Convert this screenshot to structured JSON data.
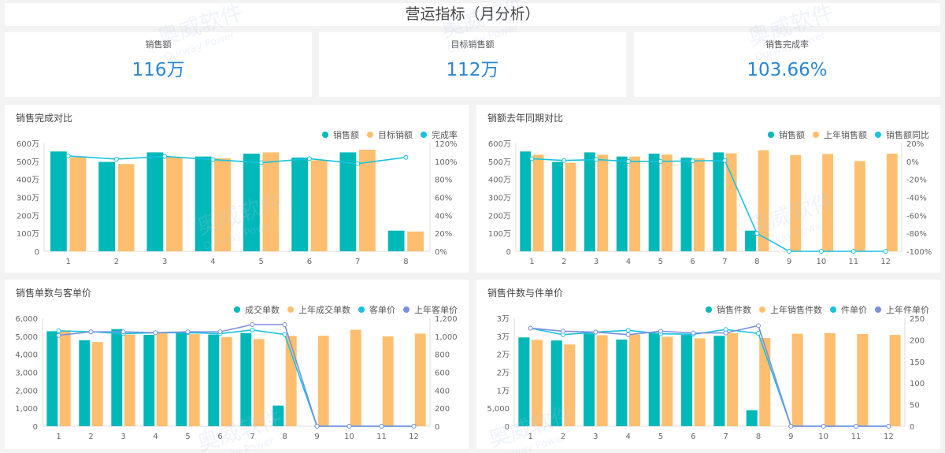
{
  "header": {
    "title": "营运指标（月分析）"
  },
  "kpis": [
    {
      "label": "销售额",
      "value": "116万"
    },
    {
      "label": "目标销售额",
      "value": "112万"
    },
    {
      "label": "销售完成率",
      "value": "103.66%"
    }
  ],
  "watermark": {
    "cn": "奥威软件",
    "en": "Ourway Power"
  },
  "colors": {
    "teal": "#00b8b8",
    "orange": "#fdbf6f",
    "cyan": "#17c2e0",
    "purple": "#7b8fdc",
    "kpi_blue": "#2a86d4"
  },
  "chart_data": [
    {
      "type": "bar+line",
      "title": "销售完成对比",
      "categories": [
        "1",
        "2",
        "3",
        "4",
        "5",
        "6",
        "7",
        "8"
      ],
      "left_axis": {
        "ticks": [
          "0",
          "100万",
          "200万",
          "300万",
          "400万",
          "500万",
          "600万"
        ],
        "min": 0,
        "max": 600,
        "unit": "万"
      },
      "right_axis": {
        "ticks": [
          "0%",
          "20%",
          "40%",
          "60%",
          "80%",
          "100%",
          "120%"
        ],
        "min": 0,
        "max": 120
      },
      "series": [
        {
          "name": "销售额",
          "kind": "bar",
          "axis": "left",
          "color": "#00b8b8",
          "values": [
            555,
            497,
            550,
            527,
            543,
            521,
            550,
            115
          ]
        },
        {
          "name": "目标销额",
          "kind": "bar",
          "axis": "left",
          "color": "#fdbf6f",
          "values": [
            523,
            485,
            523,
            517,
            550,
            506,
            565,
            110
          ]
        },
        {
          "name": "完成率",
          "kind": "line",
          "axis": "right",
          "color": "#17c2e0",
          "values": [
            106,
            102.5,
            105.5,
            102,
            98.5,
            103,
            97.5,
            104.5
          ]
        }
      ],
      "legend": [
        "销售额",
        "目标销额",
        "完成率"
      ]
    },
    {
      "type": "bar+line",
      "title": "销额去年同期对比",
      "categories": [
        "1",
        "2",
        "3",
        "4",
        "5",
        "6",
        "7",
        "8",
        "9",
        "10",
        "11",
        "12"
      ],
      "left_axis": {
        "ticks": [
          "0",
          "100万",
          "200万",
          "300万",
          "400万",
          "500万",
          "600万"
        ],
        "min": 0,
        "max": 600,
        "unit": "万"
      },
      "right_axis": {
        "ticks": [
          "-100%",
          "-80%",
          "-60%",
          "-40%",
          "-20%",
          "0%",
          "20%"
        ],
        "min": -100,
        "max": 20
      },
      "series": [
        {
          "name": "销售额",
          "kind": "bar",
          "axis": "left",
          "color": "#00b8b8",
          "values": [
            555,
            497,
            550,
            527,
            543,
            521,
            550,
            115,
            null,
            null,
            null,
            null
          ]
        },
        {
          "name": "上年销售额",
          "kind": "bar",
          "axis": "left",
          "color": "#fdbf6f",
          "values": [
            537,
            492,
            537,
            527,
            538,
            517,
            545,
            562,
            535,
            541,
            502,
            543
          ]
        },
        {
          "name": "销售额同比",
          "kind": "line",
          "axis": "right",
          "color": "#17c2e0",
          "values": [
            3,
            1,
            2,
            0,
            0,
            0.5,
            1,
            -80,
            -100,
            -100,
            -100,
            -100
          ]
        }
      ],
      "legend": [
        "销售额",
        "上年销售额",
        "销售额同比"
      ]
    },
    {
      "type": "bar+line",
      "title": "销售单数与客单价",
      "categories": [
        "1",
        "2",
        "3",
        "4",
        "5",
        "6",
        "7",
        "8",
        "9",
        "10",
        "11",
        "12"
      ],
      "left_axis": {
        "ticks": [
          "0",
          "1,000",
          "2,000",
          "3,000",
          "4,000",
          "5,000",
          "6,000"
        ],
        "min": 0,
        "max": 6000
      },
      "right_axis": {
        "ticks": [
          "0",
          "200",
          "400",
          "600",
          "800",
          "1,000",
          "1,200"
        ],
        "min": 0,
        "max": 1200
      },
      "series": [
        {
          "name": "成交单数",
          "kind": "bar",
          "axis": "left",
          "color": "#00b8b8",
          "values": [
            5280,
            4780,
            5400,
            5080,
            5200,
            5100,
            5180,
            1150,
            null,
            null,
            null,
            null
          ]
        },
        {
          "name": "上年成交单数",
          "kind": "bar",
          "axis": "left",
          "color": "#fdbf6f",
          "values": [
            5330,
            4680,
            5100,
            5180,
            5120,
            4960,
            4850,
            5020,
            5030,
            5360,
            4990,
            5150
          ]
        },
        {
          "name": "客单价",
          "kind": "line",
          "axis": "right",
          "color": "#17c2e0",
          "values": [
            1060,
            1050,
            1030,
            1040,
            1040,
            1030,
            1070,
            1020,
            0,
            0,
            0,
            0
          ]
        },
        {
          "name": "上年客单价",
          "kind": "line",
          "axis": "right",
          "color": "#7b8fdc",
          "values": [
            1010,
            1050,
            1050,
            1040,
            1050,
            1050,
            1130,
            1130,
            0,
            0,
            0,
            0
          ]
        }
      ],
      "legend": [
        "成交单数",
        "上年成交单数",
        "客单价",
        "上年客单价"
      ]
    },
    {
      "type": "bar+line",
      "title": "销售件数与件单价",
      "categories": [
        "1",
        "2",
        "3",
        "4",
        "5",
        "6",
        "7",
        "8",
        "9",
        "10",
        "11",
        "12"
      ],
      "left_axis": {
        "ticks": [
          "0",
          "5,000",
          "1万",
          "2万",
          "2万",
          "3万",
          "3万"
        ],
        "min": 0,
        "max": 35000
      },
      "right_axis": {
        "ticks": [
          "0",
          "50",
          "100",
          "150",
          "200",
          "250"
        ],
        "min": 0,
        "max": 250
      },
      "series": [
        {
          "name": "销售件数",
          "kind": "bar",
          "axis": "left",
          "color": "#00b8b8",
          "values": [
            28800,
            27800,
            30100,
            28100,
            30300,
            29600,
            29300,
            5200,
            null,
            null,
            null,
            null
          ]
        },
        {
          "name": "上年销售件数",
          "kind": "bar",
          "axis": "left",
          "color": "#fdbf6f",
          "values": [
            28000,
            26500,
            29500,
            29700,
            29000,
            28500,
            30200,
            28600,
            30000,
            30200,
            29900,
            29600
          ]
        },
        {
          "name": "件单价",
          "kind": "line",
          "axis": "right",
          "color": "#17c2e0",
          "values": [
            227,
            212,
            218,
            222,
            214,
            213,
            224,
            215,
            0,
            0,
            0,
            0
          ]
        },
        {
          "name": "上年件单价",
          "kind": "line",
          "axis": "right",
          "color": "#7b8fdc",
          "values": [
            227,
            220,
            218,
            212,
            220,
            216,
            216,
            233,
            0,
            0,
            0,
            0
          ]
        }
      ],
      "legend": [
        "销售件数",
        "上年销售件数",
        "件单价",
        "上年件单价"
      ]
    }
  ]
}
